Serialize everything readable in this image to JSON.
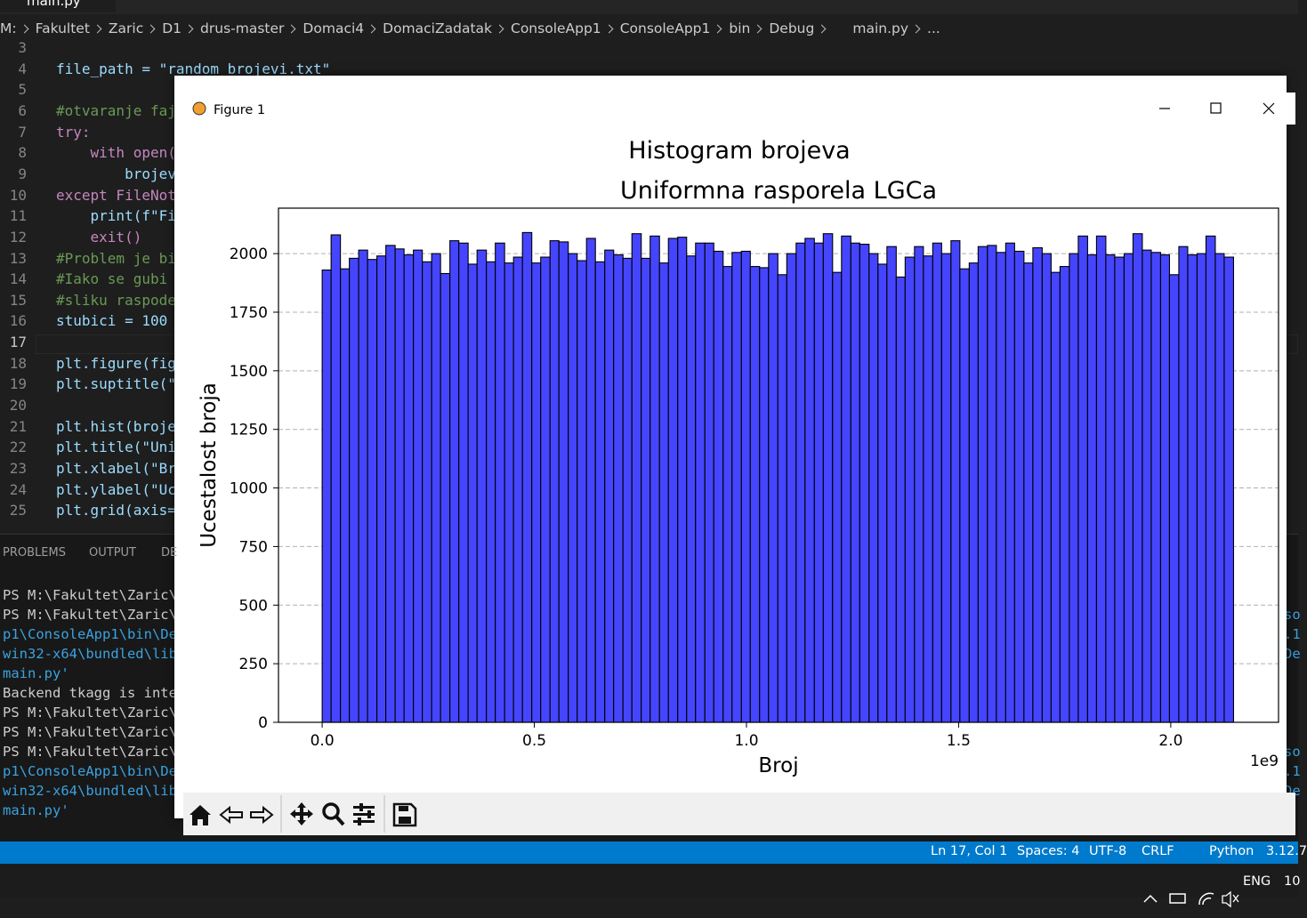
{
  "editor_tab": "main.py",
  "breadcrumbs": [
    "M:",
    "Fakultet",
    "Zaric",
    "D1",
    "drus-master",
    "Domaci4",
    "DomaciZadatak",
    "ConsoleApp1",
    "ConsoleApp1",
    "bin",
    "Debug",
    "main.py",
    "..."
  ],
  "code_lines": [
    {
      "number": 3
    },
    {
      "number": 4,
      "text": "file_path = \"random_brojevi.txt\""
    },
    {
      "number": 5
    },
    {
      "number": 6,
      "text": "#otvaranje faj"
    },
    {
      "number": 7,
      "text": "try:"
    },
    {
      "number": 8,
      "text": "    with open("
    },
    {
      "number": 9,
      "text": "        brojev"
    },
    {
      "number": 10,
      "text": "except FileNot"
    },
    {
      "number": 11,
      "text": "    print(f\"Fi"
    },
    {
      "number": 12,
      "text": "    exit()"
    },
    {
      "number": 13,
      "text": "#Problem je bi"
    },
    {
      "number": 14,
      "text": "#Iako se gubi"
    },
    {
      "number": 15,
      "text": "#sliku raspode"
    },
    {
      "number": 16,
      "text": "stubici = 100"
    },
    {
      "number": 17
    },
    {
      "number": 18,
      "text": "plt.figure(fig"
    },
    {
      "number": 19,
      "text": "plt.suptitle(\""
    },
    {
      "number": 20
    },
    {
      "number": 21,
      "text": "plt.hist(broje"
    },
    {
      "number": 22,
      "text": "plt.title(\"Uni"
    },
    {
      "number": 23,
      "text": "plt.xlabel(\"Br"
    },
    {
      "number": 24,
      "text": "plt.ylabel(\"Uc"
    },
    {
      "number": 25,
      "text": "plt.grid(axis="
    }
  ],
  "panel_tabs": [
    "PROBLEMS",
    "OUTPUT",
    "DE"
  ],
  "terminal_lines": [
    "PS M:\\Fakultet\\Zaric\\D",
    "PS M:\\Fakultet\\Zaric\\D",
    "p1\\ConsoleApp1\\bin\\Deb",
    "win32-x64\\bundled\\libs",
    "main.py'",
    "Backend tkagg is inter",
    "PS M:\\Fakultet\\Zaric\\D",
    "PS M:\\Fakultet\\Zaric\\D",
    "PS M:\\Fakultet\\Zaric\\D",
    "p1\\ConsoleApp1\\bin\\Deb",
    "win32-x64\\bundled\\libs",
    "main.py'"
  ],
  "terminal_right": [
    "so",
    ".1",
    "De",
    "so",
    ".1",
    "De"
  ],
  "status_items": [
    "Ln 17, Col 1",
    "Spaces: 4",
    "UTF-8",
    "CRLF",
    "Python",
    "3.12.7"
  ],
  "taskbar_items": [
    "ENG",
    "10"
  ],
  "window_title": "Figure 1",
  "chart_data": {
    "type": "histogram",
    "suptitle": "Histogram brojeva",
    "title": "Uniformna rasporela LGCa",
    "x_label": "Broj",
    "y_label": "Ucestalost broja",
    "x_offset_label": "1e9",
    "color": "#4545ff",
    "edgecolor": "#000000",
    "bins": [
      0,
      0.021,
      0.043,
      0.064,
      0.086,
      0.107,
      0.129,
      0.15,
      0.172,
      0.193,
      0.215,
      0.236,
      0.258,
      0.279,
      0.301,
      0.322,
      0.344,
      0.365,
      0.387,
      0.408,
      0.43,
      0.451,
      0.472,
      0.494,
      0.515,
      0.537,
      0.558,
      0.58,
      0.601,
      0.623,
      0.644,
      0.666,
      0.687,
      0.709,
      0.73,
      0.752,
      0.773,
      0.795,
      0.816,
      0.838,
      0.859,
      0.88,
      0.902,
      0.923,
      0.945,
      0.966,
      0.988,
      1.009,
      1.031,
      1.052,
      1.074,
      1.095,
      1.117,
      1.138,
      1.16,
      1.181,
      1.203,
      1.224,
      1.246,
      1.267,
      1.289,
      1.31,
      1.331,
      1.353,
      1.374,
      1.396,
      1.417,
      1.439,
      1.46,
      1.482,
      1.503,
      1.525,
      1.546,
      1.568,
      1.589,
      1.611,
      1.632,
      1.654,
      1.675,
      1.697,
      1.718,
      1.739,
      1.761,
      1.782,
      1.804,
      1.825,
      1.847,
      1.868,
      1.89,
      1.911,
      1.933,
      1.954,
      1.976,
      1.997,
      2.019,
      2.04,
      2.062,
      2.083,
      2.105,
      2.126,
      2.148
    ],
    "values": [
      1930,
      2080,
      1935,
      1980,
      2015,
      1975,
      1990,
      2035,
      2020,
      1995,
      2015,
      1965,
      2000,
      1915,
      2055,
      2045,
      1955,
      2015,
      1965,
      2045,
      1960,
      1985,
      2090,
      1960,
      1985,
      2055,
      2050,
      2000,
      1970,
      2065,
      1965,
      2015,
      1995,
      1980,
      2085,
      1980,
      2075,
      1960,
      2065,
      2070,
      1990,
      2045,
      2045,
      2010,
      1945,
      2005,
      2010,
      1945,
      1940,
      2000,
      1910,
      2000,
      2045,
      2065,
      2045,
      2085,
      1920,
      2075,
      2045,
      2040,
      2000,
      1955,
      2030,
      1900,
      1985,
      2030,
      1990,
      2045,
      2000,
      2055,
      1935,
      1960,
      2030,
      2035,
      2005,
      2045,
      2010,
      1960,
      2025,
      2000,
      1920,
      1945,
      2000,
      2075,
      1995,
      2075,
      1995,
      1985,
      2000,
      2085,
      2015,
      2005,
      1995,
      1910,
      2030,
      1995,
      2000,
      2075,
      2000,
      1985
    ],
    "xlim": [
      -0.103,
      2.254
    ],
    "xticks": [
      {
        "value": 0,
        "label": "0.0"
      },
      0.5,
      {
        "value": 1,
        "label": "1.0"
      },
      1.5,
      {
        "value": 2,
        "label": "2.0"
      }
    ],
    "ylim": [
      0,
      2194
    ],
    "yticks": [
      0,
      250,
      500,
      750,
      1000,
      1250,
      1500,
      1750,
      2000
    ],
    "grid": "y"
  }
}
